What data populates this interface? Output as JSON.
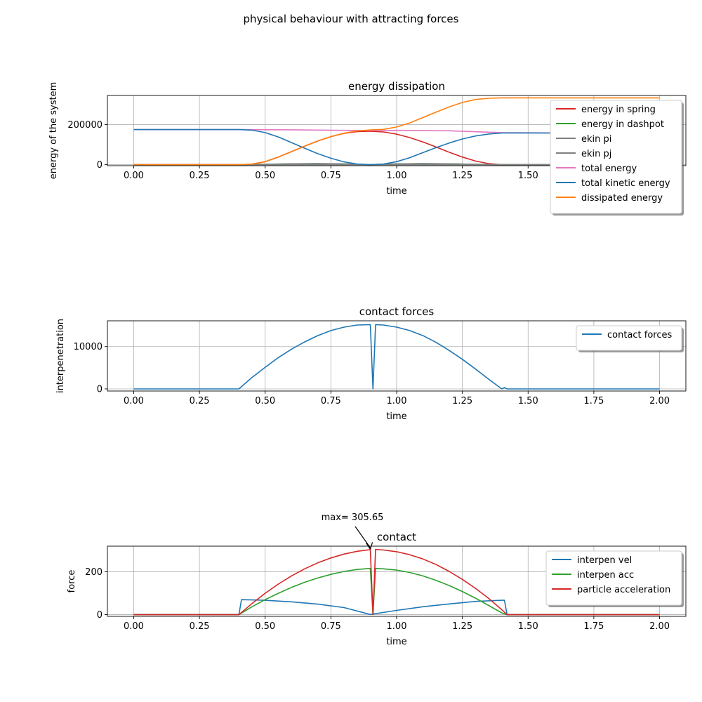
{
  "figure": {
    "suptitle": "physical behaviour with attracting forces"
  },
  "chart_data": [
    {
      "type": "line",
      "title": "energy dissipation",
      "xlabel": "time",
      "ylabel": "energy of the system",
      "xlim": [
        -0.1,
        2.1
      ],
      "ylim": [
        -5000,
        345000
      ],
      "xticks": [
        0.0,
        0.25,
        0.5,
        0.75,
        1.0,
        1.25,
        1.5,
        1.75,
        2.0
      ],
      "xtick_labels": [
        "0.00",
        "0.25",
        "0.50",
        "0.75",
        "1.00",
        "1.25",
        "1.50",
        "1.75",
        "2.00"
      ],
      "yticks": [
        0,
        200000
      ],
      "ytick_labels": [
        "0",
        "200000"
      ],
      "grid": true,
      "legend": "upper right",
      "series": [
        {
          "name": "energy in spring",
          "color": "#d62728",
          "x": [
            0,
            0.4,
            0.45,
            0.5,
            0.55,
            0.6,
            0.65,
            0.7,
            0.75,
            0.8,
            0.85,
            0.9,
            0.95,
            1.0,
            1.05,
            1.1,
            1.15,
            1.2,
            1.25,
            1.3,
            1.35,
            1.4,
            2.0
          ],
          "y": [
            0,
            0,
            2000,
            15000,
            38000,
            65000,
            92000,
            118000,
            140000,
            156000,
            165000,
            167000,
            163000,
            152000,
            135000,
            113000,
            88000,
            62000,
            38000,
            18000,
            5000,
            0,
            0
          ]
        },
        {
          "name": "energy in dashpot",
          "color": "#2ca02c",
          "x": [
            0,
            0.4,
            0.5,
            0.6,
            0.7,
            0.8,
            0.9,
            1.0,
            1.1,
            1.2,
            1.3,
            1.4,
            2.0
          ],
          "y": [
            0,
            0,
            2000,
            4500,
            5500,
            4000,
            500,
            4000,
            5500,
            4500,
            2000,
            0,
            0
          ]
        },
        {
          "name": "ekin pi",
          "color": "#7f7f7f",
          "x": [
            0,
            0.4,
            0.5,
            0.6,
            0.7,
            0.8,
            0.9,
            1.0,
            1.1,
            1.2,
            1.3,
            1.4,
            2.0
          ],
          "y": [
            0,
            0,
            1500,
            4000,
            5000,
            3500,
            400,
            3500,
            5000,
            4000,
            1500,
            0,
            0
          ]
        },
        {
          "name": "ekin pj",
          "color": "#7f7f7f",
          "x": [
            0,
            2.0
          ],
          "y": [
            0,
            0
          ]
        },
        {
          "name": "total energy",
          "color": "#e377c2",
          "x": [
            0,
            0.4,
            0.6,
            0.8,
            0.9,
            1.0,
            1.2,
            1.4,
            1.6,
            2.0
          ],
          "y": [
            175000,
            175000,
            174000,
            171000,
            170000,
            171000,
            169000,
            160000,
            158000,
            158000
          ]
        },
        {
          "name": "total kinetic energy",
          "color": "#1f77b4",
          "x": [
            0,
            0.4,
            0.45,
            0.5,
            0.55,
            0.6,
            0.65,
            0.7,
            0.75,
            0.8,
            0.85,
            0.9,
            0.95,
            1.0,
            1.05,
            1.1,
            1.15,
            1.2,
            1.25,
            1.3,
            1.35,
            1.4,
            2.0
          ],
          "y": [
            175000,
            175000,
            172000,
            160000,
            138000,
            110000,
            82000,
            55000,
            32000,
            14000,
            3000,
            0,
            3000,
            15000,
            35000,
            60000,
            85000,
            108000,
            128000,
            143000,
            153000,
            158000,
            158000
          ]
        },
        {
          "name": "dissipated energy",
          "color": "#ff7f0e",
          "x": [
            0,
            0.4,
            0.45,
            0.5,
            0.55,
            0.6,
            0.65,
            0.7,
            0.75,
            0.8,
            0.85,
            0.9,
            0.95,
            1.0,
            1.05,
            1.1,
            1.15,
            1.2,
            1.25,
            1.3,
            1.35,
            1.4,
            2.0
          ],
          "y": [
            0,
            0,
            3000,
            15000,
            38000,
            65000,
            92000,
            118000,
            140000,
            157000,
            168000,
            173000,
            176000,
            188000,
            208000,
            235000,
            262000,
            288000,
            310000,
            325000,
            331000,
            333000,
            333000
          ]
        }
      ]
    },
    {
      "type": "line",
      "title": "contact forces",
      "xlabel": "time",
      "ylabel": "interpenetration",
      "xlim": [
        -0.1,
        2.1
      ],
      "ylim": [
        -500,
        16100
      ],
      "xticks": [
        0.0,
        0.25,
        0.5,
        0.75,
        1.0,
        1.25,
        1.5,
        1.75,
        2.0
      ],
      "xtick_labels": [
        "0.00",
        "0.25",
        "0.50",
        "0.75",
        "1.00",
        "1.25",
        "1.50",
        "1.75",
        "2.00"
      ],
      "yticks": [
        0,
        10000
      ],
      "ytick_labels": [
        "0",
        "10000"
      ],
      "grid": true,
      "legend": "upper right",
      "series": [
        {
          "name": "contact forces",
          "color": "#1f77b4",
          "x": [
            0,
            0.4,
            0.45,
            0.5,
            0.55,
            0.6,
            0.65,
            0.7,
            0.75,
            0.8,
            0.85,
            0.9,
            0.91,
            0.92,
            0.95,
            1.0,
            1.05,
            1.1,
            1.15,
            1.2,
            1.25,
            1.3,
            1.35,
            1.4,
            1.41,
            1.42,
            2.0
          ],
          "y": [
            0,
            0,
            2700,
            5100,
            7400,
            9400,
            11100,
            12600,
            13800,
            14600,
            15100,
            15200,
            0,
            15200,
            15100,
            14600,
            13800,
            12600,
            11000,
            9100,
            7000,
            4700,
            2300,
            0,
            300,
            0,
            0
          ]
        }
      ]
    },
    {
      "type": "line",
      "title": "contact",
      "xlabel": "time",
      "ylabel": "force",
      "xlim": [
        -0.1,
        2.1
      ],
      "ylim": [
        -8,
        320
      ],
      "xticks": [
        0.0,
        0.25,
        0.5,
        0.75,
        1.0,
        1.25,
        1.5,
        1.75,
        2.0
      ],
      "xtick_labels": [
        "0.00",
        "0.25",
        "0.50",
        "0.75",
        "1.00",
        "1.25",
        "1.50",
        "1.75",
        "2.00"
      ],
      "yticks": [
        0,
        200
      ],
      "ytick_labels": [
        "0",
        "200"
      ],
      "grid": true,
      "legend": "upper right",
      "annotation": {
        "text": "max= 305.65",
        "x": 0.9,
        "y": 305.65
      },
      "series": [
        {
          "name": "interpen vel",
          "color": "#1f77b4",
          "x": [
            0,
            0.4,
            0.41,
            0.5,
            0.6,
            0.7,
            0.8,
            0.9,
            1.0,
            1.1,
            1.2,
            1.3,
            1.4,
            1.41,
            1.42,
            2.0
          ],
          "y": [
            0,
            0,
            70,
            67,
            60,
            49,
            33,
            1,
            20,
            37,
            50,
            62,
            67,
            67,
            0,
            0
          ]
        },
        {
          "name": "interpen acc",
          "color": "#2ca02c",
          "x": [
            0,
            0.4,
            0.45,
            0.5,
            0.55,
            0.6,
            0.65,
            0.7,
            0.75,
            0.8,
            0.85,
            0.9,
            0.91,
            0.92,
            0.95,
            1.0,
            1.05,
            1.1,
            1.15,
            1.2,
            1.25,
            1.3,
            1.35,
            1.4,
            1.42,
            2.0
          ],
          "y": [
            0,
            0,
            37,
            70,
            100,
            127,
            151,
            171,
            188,
            202,
            211,
            216,
            1,
            216,
            214,
            208,
            197,
            181,
            160,
            136,
            108,
            77,
            43,
            8,
            0,
            0
          ]
        },
        {
          "name": "particle acceleration",
          "color": "#d62728",
          "x": [
            0,
            0.4,
            0.45,
            0.5,
            0.55,
            0.6,
            0.65,
            0.7,
            0.75,
            0.8,
            0.85,
            0.9,
            0.91,
            0.92,
            0.95,
            1.0,
            1.05,
            1.1,
            1.15,
            1.2,
            1.25,
            1.3,
            1.35,
            1.4,
            1.42,
            2.0
          ],
          "y": [
            0,
            0,
            52,
            100,
            143,
            181,
            214,
            242,
            265,
            283,
            296,
            304,
            1,
            305,
            302,
            294,
            280,
            260,
            234,
            202,
            165,
            123,
            76,
            23,
            0,
            0
          ]
        }
      ]
    }
  ]
}
